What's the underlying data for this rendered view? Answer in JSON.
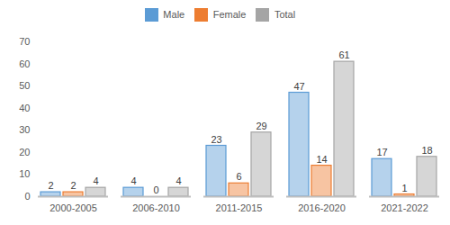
{
  "chart_data": {
    "type": "bar",
    "categories": [
      "2000-2005",
      "2006-2010",
      "2011-2015",
      "2016-2020",
      "2021-2022"
    ],
    "series": [
      {
        "name": "Male",
        "color": "#5b9bd5",
        "values": [
          2,
          4,
          23,
          47,
          17
        ]
      },
      {
        "name": "Female",
        "color": "#ed7d31",
        "values": [
          2,
          0,
          6,
          14,
          1
        ]
      },
      {
        "name": "Total",
        "color": "#a5a5a5",
        "values": [
          4,
          4,
          29,
          61,
          18
        ]
      }
    ],
    "ylim": [
      0,
      70
    ],
    "yticks": [
      0,
      10,
      20,
      30,
      40,
      50,
      60,
      70
    ],
    "grid": false,
    "legend": "top",
    "data_labels": true
  }
}
